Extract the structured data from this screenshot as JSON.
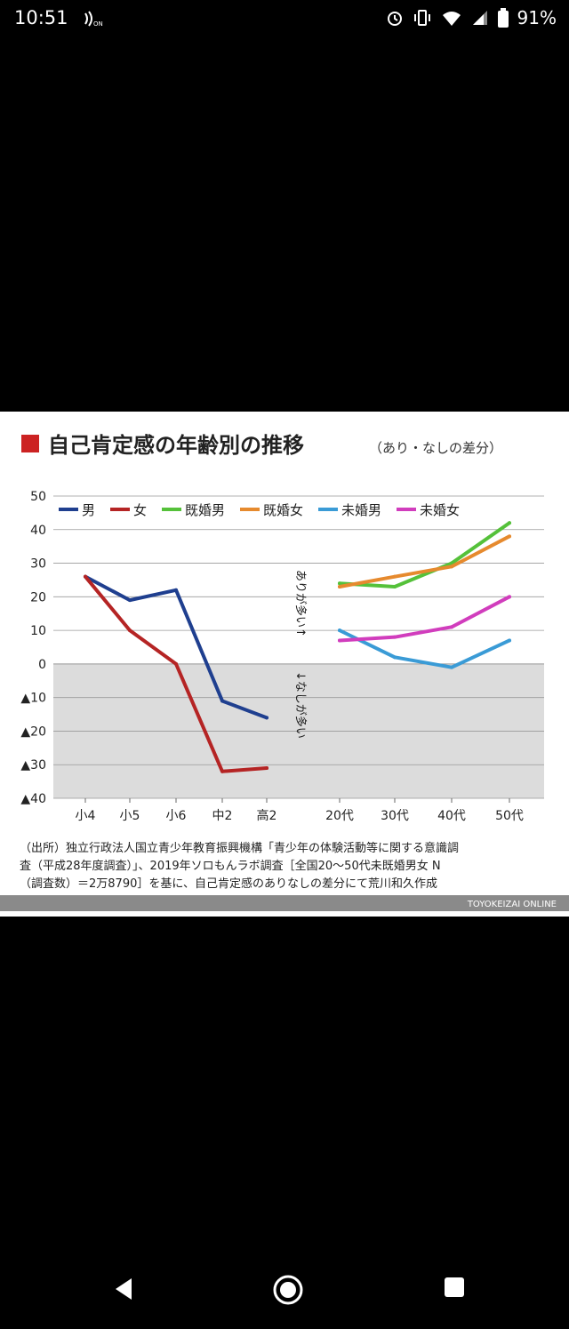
{
  "status_bar": {
    "time": "10:51",
    "battery": "91%",
    "icons": [
      "nfc-icon",
      "alarm-icon",
      "vibrate-icon",
      "wifi-icon",
      "signal-icon",
      "battery-icon"
    ]
  },
  "chart_data": {
    "type": "line",
    "title": "自己肯定感の年齢別の推移",
    "subtitle": "（あり・なしの差分）",
    "accent_color": "#cc2222",
    "ylim": [
      -40,
      50
    ],
    "y_ticks": [
      {
        "value": 50,
        "label": "50"
      },
      {
        "value": 40,
        "label": "40"
      },
      {
        "value": 30,
        "label": "30"
      },
      {
        "value": 20,
        "label": "20"
      },
      {
        "value": 10,
        "label": "10"
      },
      {
        "value": 0,
        "label": "0"
      },
      {
        "value": -10,
        "label": "▲10"
      },
      {
        "value": -20,
        "label": "▲20"
      },
      {
        "value": -30,
        "label": "▲30"
      },
      {
        "value": -40,
        "label": "▲40"
      }
    ],
    "negative_region_shaded": true,
    "legend_position": "top",
    "groups": [
      {
        "categories": [
          "小4",
          "小5",
          "小6",
          "中2",
          "高2"
        ],
        "series": [
          {
            "name": "男",
            "color": "#1f3f8f",
            "values": [
              26,
              19,
              22,
              -11,
              -16
            ]
          },
          {
            "name": "女",
            "color": "#b52424",
            "values": [
              26,
              10,
              0,
              -32,
              -31
            ]
          }
        ]
      },
      {
        "categories": [
          "20代",
          "30代",
          "40代",
          "50代"
        ],
        "series": [
          {
            "name": "既婚男",
            "color": "#55c13a",
            "values": [
              24,
              23,
              30,
              42
            ]
          },
          {
            "name": "既婚女",
            "color": "#e68a2e",
            "values": [
              23,
              26,
              29,
              38
            ]
          },
          {
            "name": "未婚男",
            "color": "#3a9bd6",
            "values": [
              10,
              2,
              -1,
              7
            ]
          },
          {
            "name": "未婚女",
            "color": "#d13dbd",
            "values": [
              7,
              8,
              11,
              20
            ]
          }
        ]
      }
    ],
    "annotations": {
      "above": "ありが多い↑",
      "below": "↓なしが多い"
    },
    "source_lines": [
      "（出所）独立行政法人国立青少年教育振興機構「青少年の体験活動等に関する意識調",
      "査（平成28年度調査）」、2019年ソロもんラボ調査［全国20〜50代未既婚男女 N",
      "（調査数）＝2万8790］を基に、自己肯定感のありなしの差分にて荒川和久作成"
    ],
    "footer_brand": "TOYOKEIZAI ONLINE"
  }
}
